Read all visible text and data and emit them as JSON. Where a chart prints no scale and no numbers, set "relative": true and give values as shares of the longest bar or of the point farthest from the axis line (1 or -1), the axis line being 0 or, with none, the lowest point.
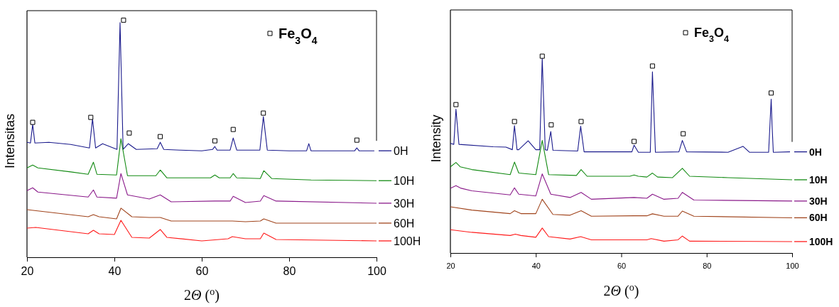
{
  "chart_data": [
    {
      "type": "line",
      "ylabel": "Intensitas",
      "xlabel": "2Θ ($^{o}$)",
      "xlim": [
        20,
        100
      ],
      "xticks": [
        20,
        40,
        60,
        80,
        100
      ],
      "relative": true,
      "legend": "top right",
      "series": [
        {
          "name": "0H",
          "color": "#1a1a8c",
          "x": [
            20,
            20.8,
            21.3,
            21.8,
            25,
            30,
            34.3,
            35,
            35.7,
            37.3,
            40.6,
            41.3,
            42,
            43.2,
            45,
            49.8,
            50.5,
            51.3,
            55,
            60,
            62.5,
            63,
            63.5,
            66.5,
            67.2,
            68,
            73.3,
            74.1,
            75,
            80,
            84,
            84.5,
            85,
            90,
            95,
            95.5,
            96,
            99.5
          ],
          "values": [
            0.485,
            0.482,
            0.56,
            0.482,
            0.485,
            0.476,
            0.461,
            0.584,
            0.461,
            0.479,
            0.455,
            0.99,
            0.455,
            0.479,
            0.455,
            0.458,
            0.485,
            0.455,
            0.452,
            0.449,
            0.455,
            0.467,
            0.452,
            0.452,
            0.503,
            0.452,
            0.452,
            0.593,
            0.452,
            0.449,
            0.449,
            0.479,
            0.449,
            0.449,
            0.449,
            0.461,
            0.449,
            0.449
          ]
        },
        {
          "name": "10H",
          "color": "#128a12",
          "x": [
            20,
            21.3,
            22.5,
            30,
            34,
            35.2,
            36,
            40.5,
            41.5,
            43,
            49.5,
            50.5,
            52,
            62,
            63,
            64,
            66.5,
            67.2,
            68,
            73.4,
            74.2,
            76,
            85,
            100
          ],
          "values": [
            0.377,
            0.389,
            0.377,
            0.36,
            0.35,
            0.401,
            0.35,
            0.347,
            0.5,
            0.344,
            0.344,
            0.368,
            0.335,
            0.335,
            0.347,
            0.335,
            0.335,
            0.353,
            0.335,
            0.332,
            0.365,
            0.332,
            0.326,
            0.323
          ]
        },
        {
          "name": "30H",
          "color": "#8a1a8a",
          "x": [
            20,
            21.3,
            22.5,
            34,
            35.2,
            36,
            40.5,
            41.5,
            43,
            48,
            50.5,
            53,
            63,
            66.5,
            67.2,
            70,
            73.4,
            74.2,
            77,
            100
          ],
          "values": [
            0.281,
            0.293,
            0.275,
            0.254,
            0.284,
            0.254,
            0.249,
            0.353,
            0.263,
            0.246,
            0.263,
            0.234,
            0.237,
            0.237,
            0.257,
            0.231,
            0.237,
            0.26,
            0.237,
            0.228
          ]
        },
        {
          "name": "60H",
          "color": "#a0441c",
          "x": [
            20,
            34,
            35.2,
            36.5,
            40.5,
            41.5,
            44,
            48,
            50.5,
            53,
            66,
            67,
            70,
            73.4,
            74.2,
            77,
            100
          ],
          "values": [
            0.201,
            0.171,
            0.18,
            0.171,
            0.162,
            0.207,
            0.171,
            0.168,
            0.168,
            0.153,
            0.153,
            0.153,
            0.15,
            0.153,
            0.162,
            0.144,
            0.144
          ]
        },
        {
          "name": "100H",
          "color": "#ff1a1a",
          "x": [
            20,
            22,
            34,
            35.2,
            36.5,
            40,
            41.5,
            44,
            48,
            50.5,
            52,
            60,
            66,
            67,
            70,
            73.4,
            74.2,
            77,
            100
          ],
          "values": [
            0.123,
            0.126,
            0.099,
            0.114,
            0.099,
            0.096,
            0.156,
            0.084,
            0.081,
            0.117,
            0.084,
            0.069,
            0.078,
            0.087,
            0.078,
            0.078,
            0.102,
            0.075,
            0.069
          ]
        },
        {
          "name": "Fe$_{3}$O$_{4}$",
          "type": "scatter",
          "marker": "square",
          "color": "#000000",
          "x": [
            21.3,
            34.6,
            42.1,
            43.4,
            50.5,
            63,
            67.2,
            74.1,
            95.5
          ],
          "values": [
            0.569,
            0.59,
            1,
            0.524,
            0.509,
            0.491,
            0.539,
            0.608,
            0.494
          ]
        }
      ]
    },
    {
      "type": "line",
      "ylabel": "Intensity",
      "xlabel": "2Θ ($^{o}$)",
      "xlim": [
        20,
        100
      ],
      "xticks": [
        20,
        40,
        60,
        80,
        100
      ],
      "relative": true,
      "legend": "top right",
      "series": [
        {
          "name": "0H",
          "color": "#1a1a8c",
          "x": [
            20,
            20.8,
            21.3,
            22,
            30,
            33,
            34.5,
            35,
            35.6,
            36,
            38.2,
            40,
            40.9,
            41.5,
            42.2,
            42.7,
            43.5,
            44,
            49.8,
            50.5,
            51.3,
            60,
            62.5,
            63,
            64,
            66.8,
            67.3,
            68,
            73.5,
            74.3,
            75.3,
            85,
            88.5,
            90,
            94.5,
            95.1,
            95.3,
            95.6,
            96,
            99.5
          ],
          "values": [
            0.557,
            0.552,
            0.731,
            0.552,
            0.54,
            0.538,
            0.525,
            0.647,
            0.525,
            0.525,
            0.57,
            0.525,
            0.525,
            0.99,
            0.525,
            0.522,
            0.617,
            0.522,
            0.518,
            0.644,
            0.514,
            0.514,
            0.514,
            0.548,
            0.512,
            0.512,
            0.921,
            0.512,
            0.514,
            0.572,
            0.514,
            0.512,
            0.542,
            0.512,
            0.512,
            0.782,
            0.653,
            0.512,
            0.512,
            0.514
          ]
        },
        {
          "name": "10H",
          "color": "#128a12",
          "x": [
            20,
            21.3,
            22.3,
            25,
            34,
            35,
            36,
            40,
            41.5,
            43,
            49.5,
            50.6,
            52,
            62,
            63,
            64,
            66,
            67.3,
            68.5,
            72,
            74.3,
            76,
            85,
            100
          ],
          "values": [
            0.438,
            0.46,
            0.438,
            0.424,
            0.398,
            0.462,
            0.406,
            0.398,
            0.572,
            0.398,
            0.394,
            0.424,
            0.39,
            0.39,
            0.396,
            0.39,
            0.386,
            0.406,
            0.386,
            0.383,
            0.43,
            0.39,
            0.383,
            0.372
          ]
        },
        {
          "name": "30H",
          "color": "#8a1a8a",
          "x": [
            20,
            21.3,
            22.5,
            25,
            34,
            35,
            36,
            40,
            41.5,
            43.5,
            48,
            50.6,
            53,
            63,
            66,
            67.3,
            70,
            73.3,
            74.3,
            77,
            100
          ],
          "values": [
            0.329,
            0.342,
            0.329,
            0.316,
            0.295,
            0.331,
            0.299,
            0.29,
            0.402,
            0.299,
            0.282,
            0.308,
            0.273,
            0.282,
            0.278,
            0.299,
            0.273,
            0.278,
            0.308,
            0.269,
            0.264
          ]
        },
        {
          "name": "60H",
          "color": "#a0441c",
          "x": [
            20,
            25,
            34,
            35,
            36.5,
            40,
            41.5,
            44,
            48,
            50.6,
            53,
            63,
            66,
            67.3,
            70,
            73.3,
            74.3,
            77,
            100
          ],
          "values": [
            0.235,
            0.218,
            0.2,
            0.215,
            0.2,
            0.2,
            0.273,
            0.196,
            0.192,
            0.215,
            0.187,
            0.189,
            0.189,
            0.199,
            0.187,
            0.187,
            0.213,
            0.187,
            0.179
          ]
        },
        {
          "name": "100H",
          "color": "#ff1a1a",
          "x": [
            20,
            25,
            34,
            35.2,
            36.5,
            40,
            41.5,
            43,
            48,
            50.5,
            53,
            63,
            66,
            67,
            70,
            73.3,
            74.3,
            76,
            100
          ],
          "values": [
            0.118,
            0.105,
            0.089,
            0.096,
            0.089,
            0.08,
            0.127,
            0.083,
            0.071,
            0.083,
            0.067,
            0.067,
            0.067,
            0.073,
            0.06,
            0.067,
            0.086,
            0.06,
            0.058
          ]
        },
        {
          "name": "Fe$_{3}$O$_{4}$",
          "type": "scatter",
          "marker": "square",
          "color": "#000000",
          "x": [
            21.3,
            35,
            41.5,
            43.6,
            50.6,
            63,
            67.3,
            74.5,
            95.1
          ],
          "values": [
            0.754,
            0.668,
            1,
            0.651,
            0.668,
            0.567,
            0.95,
            0.606,
            0.813
          ]
        }
      ]
    }
  ]
}
